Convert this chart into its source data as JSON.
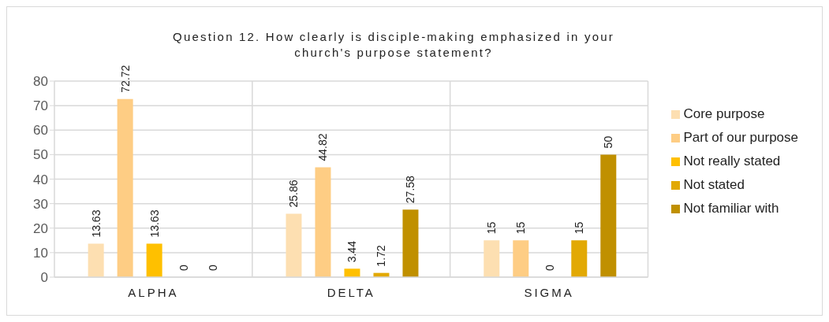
{
  "chart_data": {
    "type": "bar",
    "title": "Question 12. How clearly is disciple-making emphasized in your church's purpose statement?",
    "categories": [
      "ALPHA",
      "DELTA",
      "SIGMA"
    ],
    "series": [
      {
        "name": "Core purpose",
        "color": "#fddfb1",
        "values": [
          13.63,
          25.86,
          15
        ]
      },
      {
        "name": "Part of our purpose",
        "color": "#fecd84",
        "values": [
          72.72,
          44.82,
          15
        ]
      },
      {
        "name": "Not really stated",
        "color": "#ffc000",
        "values": [
          13.63,
          3.44,
          0
        ]
      },
      {
        "name": "Not stated",
        "color": "#e2a904",
        "values": [
          0,
          1.72,
          15
        ]
      },
      {
        "name": "Not familiar with",
        "color": "#c09000",
        "values": [
          0,
          27.58,
          50
        ]
      }
    ],
    "ylim": [
      0,
      80
    ],
    "yticks": [
      0,
      10,
      20,
      30,
      40,
      50,
      60,
      70,
      80
    ],
    "grid": true,
    "legend": "right",
    "data_labels": true
  }
}
